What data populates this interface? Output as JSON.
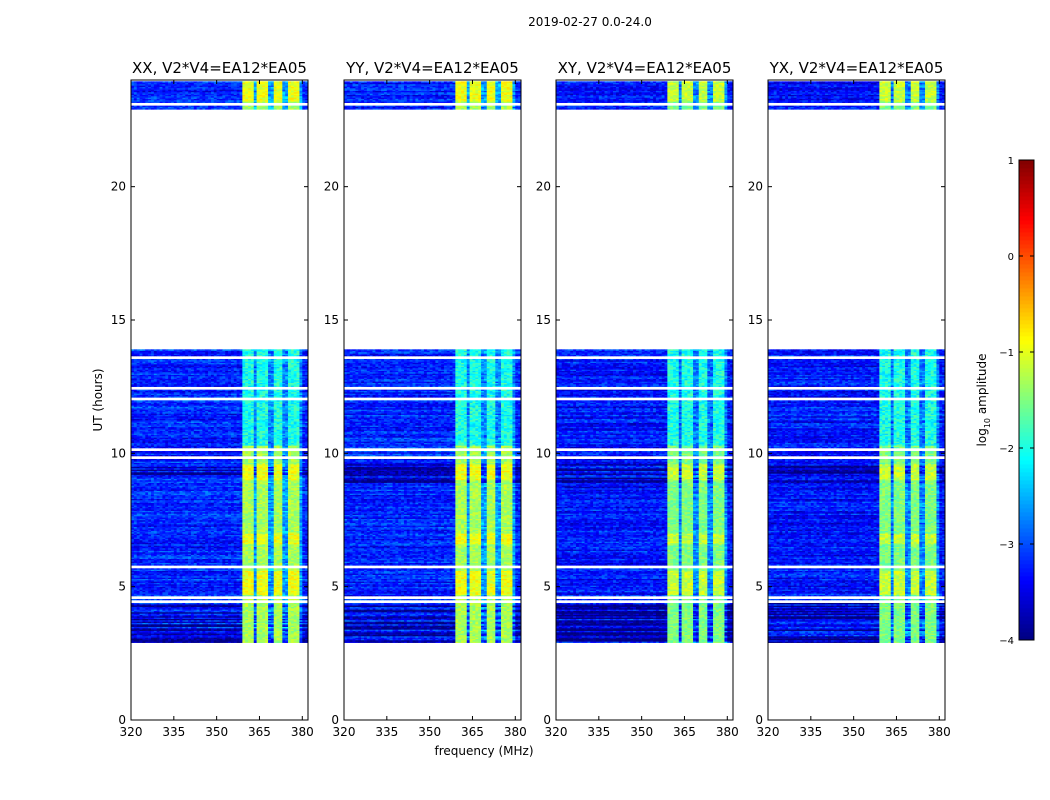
{
  "figure": {
    "suptitle": "2019-02-27 0.0-24.0",
    "xlabel": "frequency (MHz)",
    "ylabel": "UT (hours)",
    "colorbar_label": "log",
    "colorbar_label_sub": "10",
    "colorbar_label_rest": " amplitude"
  },
  "colors": {
    "background": "#ffffff",
    "blank": "#ffffff",
    "frame": "#000000"
  },
  "chart_data": {
    "type": "heatmap",
    "colormap": "jet",
    "xlim": [
      320,
      382
    ],
    "ylim": [
      0,
      24
    ],
    "xticks": [
      320,
      335,
      350,
      365,
      380
    ],
    "yticks": [
      0,
      5,
      10,
      15,
      20
    ],
    "xtick_labels": [
      "320",
      "335",
      "350",
      "365",
      "380"
    ],
    "ytick_labels": [
      "0",
      "5",
      "10",
      "15",
      "20"
    ],
    "colorbar": {
      "range": [
        -4,
        1
      ],
      "ticks": [
        1,
        0,
        -1,
        -2,
        -3,
        -4
      ],
      "tick_labels": [
        "1",
        "0",
        "−1",
        "−2",
        "−3",
        "−4"
      ]
    },
    "data_time_ranges": [
      [
        2.9,
        13.9
      ],
      [
        22.9,
        23.95
      ]
    ],
    "rfi_band_mhz": [
      359,
      380
    ],
    "rfi_subbands_mhz": [
      [
        359.5,
        362.5
      ],
      [
        364.5,
        367.5
      ],
      [
        370,
        373
      ],
      [
        375.5,
        378.5
      ]
    ],
    "gap_hours": [
      4.45,
      4.6,
      5.75,
      9.85,
      10.15,
      12.05,
      12.45,
      13.6,
      23.1
    ],
    "panels": [
      {
        "title": "XX, V2*V4=EA12*EA05",
        "correlation": "XX",
        "base_level": -3.2,
        "rfi_level": -1.3
      },
      {
        "title": "YY, V2*V4=EA12*EA05",
        "correlation": "YY",
        "base_level": -3.2,
        "rfi_level": -1.3
      },
      {
        "title": "XY, V2*V4=EA12*EA05",
        "correlation": "XY",
        "base_level": -3.3,
        "rfi_level": -1.5
      },
      {
        "title": "YX, V2*V4=EA12*EA05",
        "correlation": "YX",
        "base_level": -3.3,
        "rfi_level": -1.5
      }
    ]
  }
}
